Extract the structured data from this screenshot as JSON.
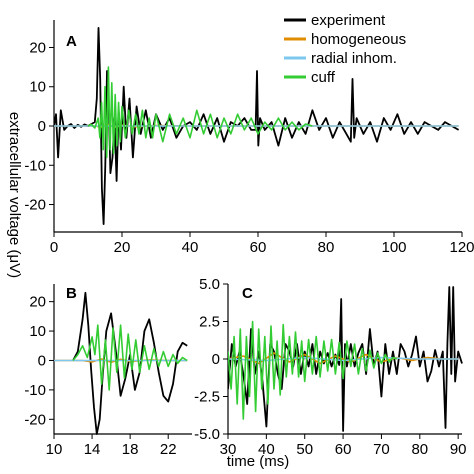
{
  "axes": {
    "xlabel": "time (ms)",
    "ylabel": "extracellular voltage (μV)"
  },
  "legend": {
    "placement": "top-right",
    "items": [
      {
        "label": "experiment",
        "color": "#000000"
      },
      {
        "label": "homogeneous",
        "color": "#e08c00"
      },
      {
        "label": "radial inhom.",
        "color": "#7ec8f0"
      },
      {
        "label": "cuff",
        "color": "#33cc33"
      }
    ]
  },
  "chart_data": [
    {
      "panel": "A",
      "type": "line",
      "xlim": [
        0,
        120
      ],
      "ylim": [
        -27,
        27
      ],
      "xticks": [
        "0",
        "20",
        "40",
        "60",
        "80",
        "100",
        "120"
      ],
      "xtick_values": [
        0,
        20,
        40,
        60,
        80,
        100,
        120
      ],
      "yticks": [
        "20",
        "10",
        "0",
        "-10",
        "-20"
      ],
      "ytick_values": [
        20,
        10,
        0,
        -10,
        -20
      ],
      "series": [
        {
          "name": "experiment",
          "color": "#000000",
          "x": [
            0,
            0.6,
            1.2,
            2,
            3,
            4,
            5,
            6,
            7,
            8,
            9,
            10,
            11,
            12,
            12.6,
            13.1,
            13.6,
            14.1,
            14.6,
            15.1,
            15.6,
            16.1,
            16.6,
            17.2,
            17.8,
            18.4,
            19,
            19.7,
            20.5,
            21.3,
            22.2,
            23.2,
            24.3,
            25.5,
            27,
            28.5,
            30,
            32,
            34,
            36,
            38,
            40,
            42,
            44,
            46,
            48,
            50,
            52,
            54,
            56,
            58,
            59.3,
            59.7,
            60.1,
            60.6,
            62,
            64,
            66,
            68,
            70,
            72,
            74,
            76,
            78,
            80,
            82,
            84,
            86,
            87.3,
            87.8,
            88.3,
            89,
            91,
            93,
            95,
            97,
            99,
            101,
            103,
            105,
            107,
            109,
            111,
            113,
            115,
            117,
            119
          ],
          "y": [
            0,
            3,
            -8,
            4,
            -1,
            0,
            0.5,
            -0.5,
            0.3,
            -0.2,
            0.4,
            0,
            0.5,
            1,
            7,
            25,
            12,
            -16,
            -25,
            -10,
            14,
            6,
            -12,
            -8,
            2,
            -14,
            4,
            -6,
            10,
            -3,
            7,
            -8,
            5,
            -2,
            4,
            -3,
            3,
            -1,
            2,
            -3,
            0,
            1,
            -1,
            3,
            -2,
            2,
            -4,
            1,
            0,
            2,
            -1,
            -1,
            14,
            -5,
            2,
            -1,
            1,
            -5,
            2,
            -3,
            1,
            -2,
            4,
            -1,
            2,
            -3,
            1,
            -2,
            -4,
            12,
            -3,
            2,
            -2,
            1,
            -4,
            2,
            -1,
            3,
            -2,
            1,
            -2,
            1,
            0,
            -1,
            1,
            0,
            -1
          ]
        },
        {
          "name": "homogeneous",
          "color": "#e08c00",
          "x": [
            0,
            12,
            14,
            16,
            18,
            20,
            24,
            30,
            40,
            60,
            80,
            100,
            119
          ],
          "y": [
            0,
            0,
            -0.3,
            0.3,
            -0.3,
            0.2,
            -0.2,
            0.1,
            0,
            0,
            0,
            0,
            0
          ]
        },
        {
          "name": "radial inhom.",
          "color": "#7ec8f0",
          "x": [
            0,
            20,
            40,
            60,
            80,
            100,
            119
          ],
          "y": [
            0,
            0,
            0,
            0,
            0,
            0,
            0
          ]
        },
        {
          "name": "cuff",
          "color": "#33cc33",
          "x": [
            10,
            11,
            12,
            13,
            13.5,
            14,
            14.5,
            15,
            15.5,
            16,
            16.5,
            17,
            17.5,
            18,
            18.5,
            19,
            19.5,
            20,
            21,
            22,
            23,
            24,
            25,
            26,
            27,
            28,
            29,
            30,
            32,
            34,
            36,
            38,
            40,
            42,
            44,
            46,
            48,
            50,
            52,
            54,
            56,
            58,
            60,
            62,
            64,
            66,
            68,
            70,
            72,
            74,
            76
          ],
          "y": [
            0,
            0.4,
            -0.5,
            2,
            -3,
            6,
            -6,
            10,
            -8,
            15,
            -6,
            11,
            -7,
            8,
            -5,
            6,
            -4,
            5,
            -3,
            4,
            -2,
            3,
            -2,
            4,
            -3,
            2,
            -3,
            3,
            -4,
            3,
            -2,
            2,
            -3,
            4,
            -2,
            3,
            -3,
            2,
            -2,
            3,
            -1,
            2,
            -2,
            1,
            -1,
            2,
            -1,
            1,
            -1,
            0.5,
            0
          ]
        }
      ]
    },
    {
      "panel": "B",
      "type": "line",
      "xlim": [
        10,
        24.5
      ],
      "ylim": [
        -25,
        26
      ],
      "xticks": [
        "10",
        "14",
        "18",
        "22"
      ],
      "xtick_values": [
        10,
        14,
        18,
        22
      ],
      "yticks": [
        "20",
        "10",
        "0",
        "-10",
        "-20"
      ],
      "ytick_values": [
        20,
        10,
        0,
        -10,
        -20
      ],
      "series": [
        {
          "name": "experiment",
          "color": "#000000",
          "x": [
            12,
            12.5,
            13,
            13.3,
            13.6,
            13.9,
            14.2,
            14.5,
            14.8,
            15.1,
            15.5,
            16,
            16.5,
            17,
            17.5,
            18,
            18.5,
            19,
            19.5,
            20,
            20.5,
            21,
            21.5,
            22,
            22.5,
            23,
            23.5,
            24
          ],
          "y": [
            0,
            3,
            14,
            23,
            12,
            -3,
            -16,
            -25,
            -20,
            -6,
            10,
            16,
            3,
            -12,
            -6,
            2,
            -10,
            -4,
            10,
            14,
            6,
            -4,
            -12,
            -14,
            -8,
            3,
            6,
            5
          ]
        },
        {
          "name": "homogeneous",
          "color": "#e08c00",
          "x": [
            10,
            13,
            14,
            15,
            16,
            17,
            18,
            20,
            22,
            24
          ],
          "y": [
            0,
            0,
            -0.5,
            0.5,
            -0.6,
            0.4,
            -0.3,
            0.2,
            0,
            0
          ]
        },
        {
          "name": "radial inhom.",
          "color": "#7ec8f0",
          "x": [
            10,
            24
          ],
          "y": [
            0,
            0
          ]
        },
        {
          "name": "cuff",
          "color": "#33cc33",
          "x": [
            12,
            12.5,
            13,
            13.5,
            14,
            14.3,
            14.6,
            15,
            15.4,
            15.8,
            16.2,
            16.6,
            17,
            17.4,
            17.8,
            18.2,
            18.6,
            19,
            19.5,
            20,
            20.5,
            21,
            21.5,
            22,
            22.5,
            23,
            23.5,
            24
          ],
          "y": [
            0,
            2,
            5,
            1,
            8,
            2,
            12,
            -8,
            7,
            -10,
            11,
            -4,
            12,
            -6,
            9,
            -3,
            7,
            -4,
            5,
            -3,
            4,
            -2,
            3,
            -2,
            2,
            -1,
            1,
            0
          ]
        }
      ]
    },
    {
      "panel": "C",
      "type": "line",
      "xlim": [
        30,
        91
      ],
      "ylim": [
        -5,
        5
      ],
      "xticks": [
        "30",
        "40",
        "50",
        "60",
        "70",
        "80",
        "90"
      ],
      "xtick_values": [
        30,
        40,
        50,
        60,
        70,
        80,
        90
      ],
      "yticks": [
        "5.0",
        "2.5",
        "0",
        "-2.5",
        "-5.0"
      ],
      "ytick_values": [
        5,
        2.5,
        0,
        -2.5,
        -5
      ],
      "series": [
        {
          "name": "experiment",
          "color": "#000000",
          "x": [
            30,
            31,
            32,
            33,
            34,
            35,
            36,
            37,
            38,
            39,
            40,
            41,
            42,
            43,
            44,
            45,
            46,
            47,
            48,
            49,
            50,
            51,
            52,
            53,
            54,
            55,
            56,
            57,
            58,
            59,
            59.5,
            60,
            60.5,
            61,
            62,
            63,
            64,
            65,
            66,
            67,
            68,
            69,
            70,
            71,
            72,
            73,
            74,
            75,
            76,
            77,
            78,
            79,
            80,
            81,
            82,
            83,
            84,
            85,
            86,
            86.7,
            87.2,
            87.7,
            88.2,
            88.7,
            89.2,
            90,
            91
          ],
          "y": [
            -2,
            1,
            -0.5,
            0.5,
            -1,
            -3,
            2,
            -1,
            0.5,
            -1.5,
            -4.5,
            1,
            0.5,
            -1,
            -2,
            1,
            0.5,
            -0.5,
            1,
            -1,
            0.5,
            -0.5,
            1,
            -1,
            0.5,
            -0.3,
            0.4,
            -0.5,
            0.3,
            -0.4,
            4,
            -4.8,
            1,
            -0.5,
            1,
            -0.5,
            0.4,
            1,
            -1,
            2,
            -0.5,
            0.5,
            -2.5,
            1,
            -1,
            0.5,
            -1,
            1,
            0.5,
            -0.5,
            0.3,
            1.5,
            -0.5,
            0.5,
            -1.5,
            -0.8,
            0.6,
            -0.5,
            0.5,
            -4.6,
            1,
            4.8,
            -1,
            4.8,
            -1.5,
            0.5,
            -0.3
          ]
        },
        {
          "name": "homogeneous",
          "color": "#e08c00",
          "x": [
            30,
            34,
            38,
            42,
            46,
            50,
            54,
            58,
            62,
            66,
            70,
            74,
            78,
            82,
            86,
            90
          ],
          "y": [
            0,
            0.2,
            -0.3,
            0.4,
            -0.2,
            0.3,
            -0.3,
            0.2,
            -0.2,
            0.3,
            -0.2,
            0.1,
            -0.1,
            0.1,
            0,
            0
          ]
        },
        {
          "name": "radial inhom.",
          "color": "#7ec8f0",
          "x": [
            30,
            40,
            50,
            60,
            70,
            80,
            90
          ],
          "y": [
            0,
            -0.1,
            0.1,
            -0.1,
            0.1,
            0,
            0
          ]
        },
        {
          "name": "cuff",
          "color": "#33cc33",
          "x": [
            30,
            30.8,
            31.6,
            32.4,
            33.2,
            34,
            34.8,
            35.6,
            36.4,
            37.2,
            38,
            38.8,
            39.6,
            40.4,
            41.2,
            42,
            42.8,
            43.6,
            44.4,
            45.2,
            46,
            46.8,
            47.6,
            48.4,
            49.2,
            50,
            51,
            52,
            53,
            54,
            55,
            56,
            57,
            58,
            59,
            60,
            61,
            62,
            63,
            64,
            65,
            66,
            67,
            68,
            69,
            70,
            71,
            72,
            73,
            74
          ],
          "y": [
            0.5,
            -2,
            1.5,
            -3,
            2,
            -4,
            1.5,
            -2.5,
            2.5,
            -3.5,
            2,
            -2,
            1.5,
            -3,
            2.2,
            -2,
            1.2,
            -2.4,
            2.3,
            -1.2,
            1.5,
            -1,
            1.8,
            -1.2,
            1.2,
            -1.5,
            1.3,
            -1,
            1.5,
            -1.2,
            1.2,
            -0.8,
            1.3,
            -1,
            1.1,
            -1.3,
            1.2,
            -0.5,
            1.0,
            -1.0,
            0.7,
            -0.8,
            0.6,
            -0.6,
            0.4,
            -0.3,
            0.3,
            -0.2,
            0.1,
            0
          ]
        }
      ]
    }
  ]
}
